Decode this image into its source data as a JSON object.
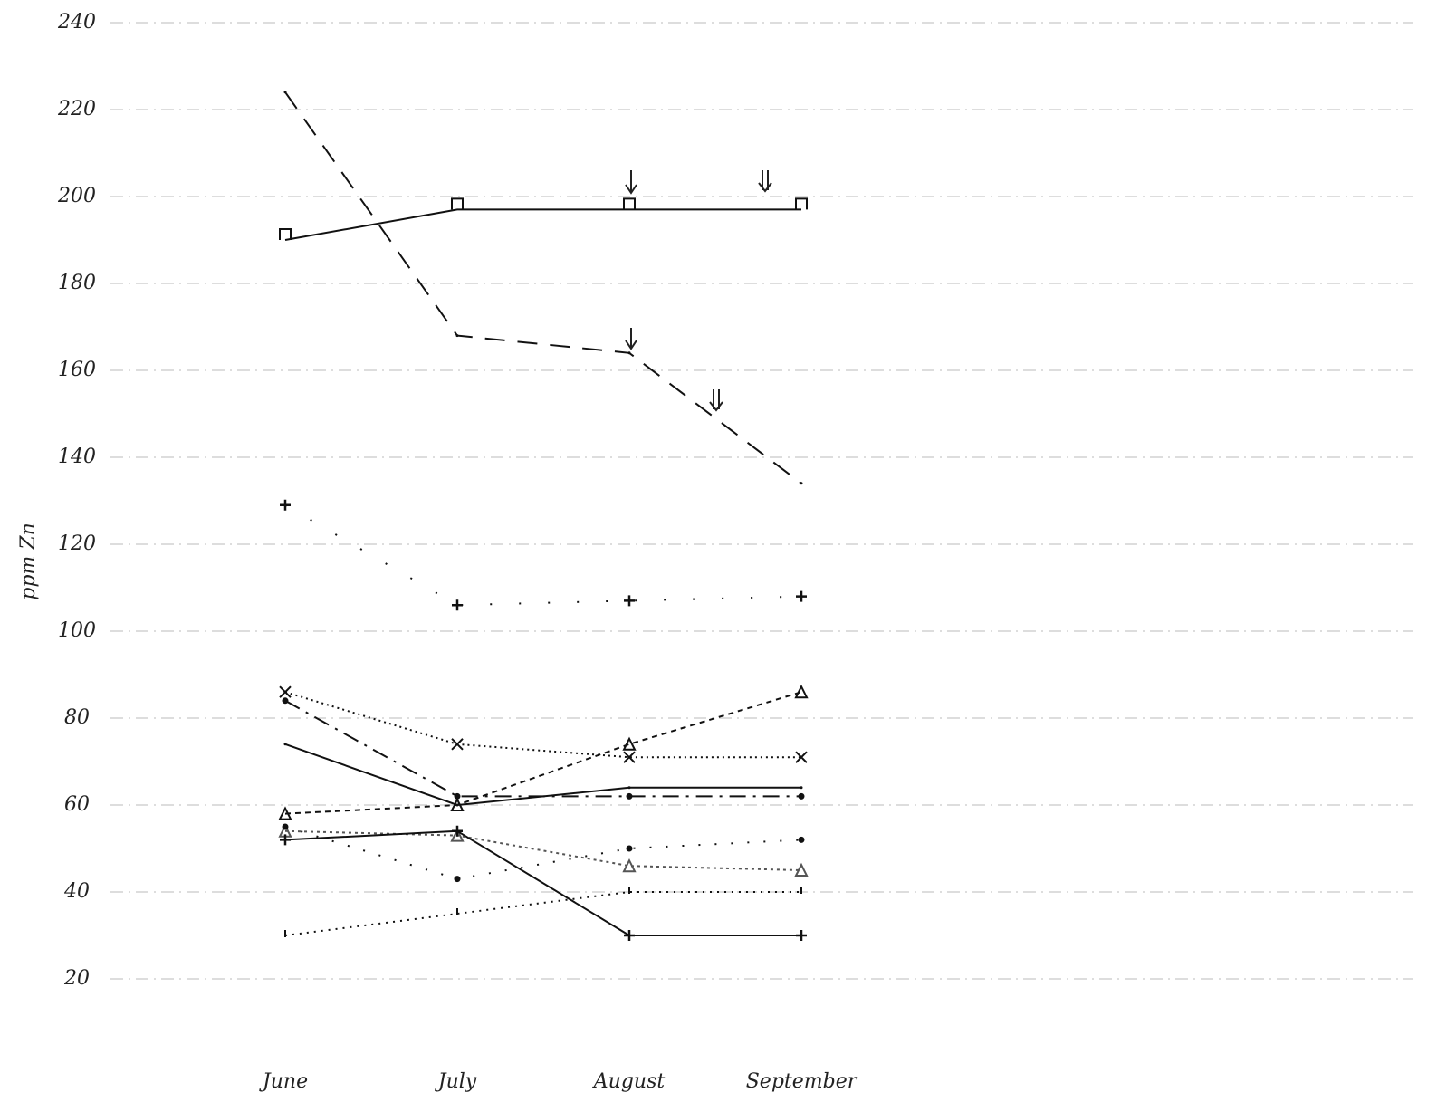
{
  "chart_data": {
    "type": "line",
    "y_label": "ppm Zn",
    "categories": [
      "June",
      "July",
      "August",
      "September"
    ],
    "ylim": [
      10,
      240
    ],
    "yticks": [
      20,
      40,
      60,
      80,
      100,
      120,
      140,
      160,
      180,
      200,
      220,
      240
    ],
    "grid": true,
    "series": [
      {
        "color": "#111111",
        "dash": "22,14",
        "marker": "none",
        "values": [
          224,
          168,
          164,
          134
        ]
      },
      {
        "color": "#111111",
        "dash": "none",
        "marker": "square",
        "values": [
          190,
          197,
          197,
          197
        ]
      },
      {
        "color": "#111111",
        "dash": "2,30",
        "marker": "plus",
        "values": [
          129,
          106,
          107,
          108
        ]
      },
      {
        "color": "#111111",
        "dash": "2,4",
        "marker": "cross",
        "values": [
          86,
          74,
          71,
          71
        ]
      },
      {
        "color": "#111111",
        "dash": "18,8,3,8",
        "marker": "dot",
        "values": [
          84,
          62,
          62,
          62
        ]
      },
      {
        "color": "#111111",
        "dash": "none",
        "marker": "none",
        "values": [
          74,
          60,
          64,
          64
        ]
      },
      {
        "color": "#111111",
        "dash": "6,5",
        "marker": "triangle",
        "values": [
          58,
          60,
          74,
          86
        ]
      },
      {
        "color": "#555555",
        "dash": "3,4",
        "marker": "triangle",
        "values": [
          54,
          53,
          46,
          45
        ]
      },
      {
        "color": "#111111",
        "dash": "2,16",
        "marker": "dot",
        "values": [
          55,
          43,
          50,
          52
        ]
      },
      {
        "color": "#111111",
        "dash": "none",
        "marker": "plus",
        "values": [
          52,
          54,
          30,
          30
        ]
      },
      {
        "color": "#111111",
        "dash": "2,6",
        "marker": "tick",
        "values": [
          30,
          35,
          40,
          40
        ]
      }
    ]
  }
}
